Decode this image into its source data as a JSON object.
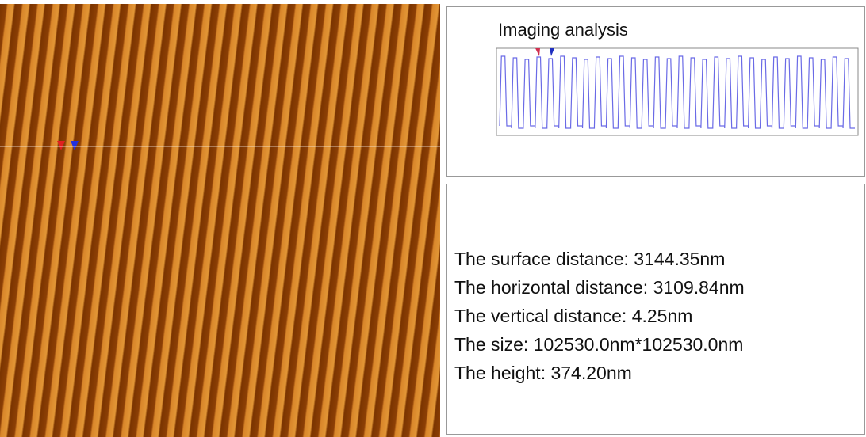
{
  "profile_panel": {
    "title": "Imaging analysis"
  },
  "measurements": {
    "lines": [
      "The surface distance: 3144.35nm",
      "The horizontal distance: 3109.84nm",
      "The vertical distance: 4.25nm",
      "The size: 102530.0nm*102530.0nm",
      "The height: 374.20nm"
    ]
  }
}
